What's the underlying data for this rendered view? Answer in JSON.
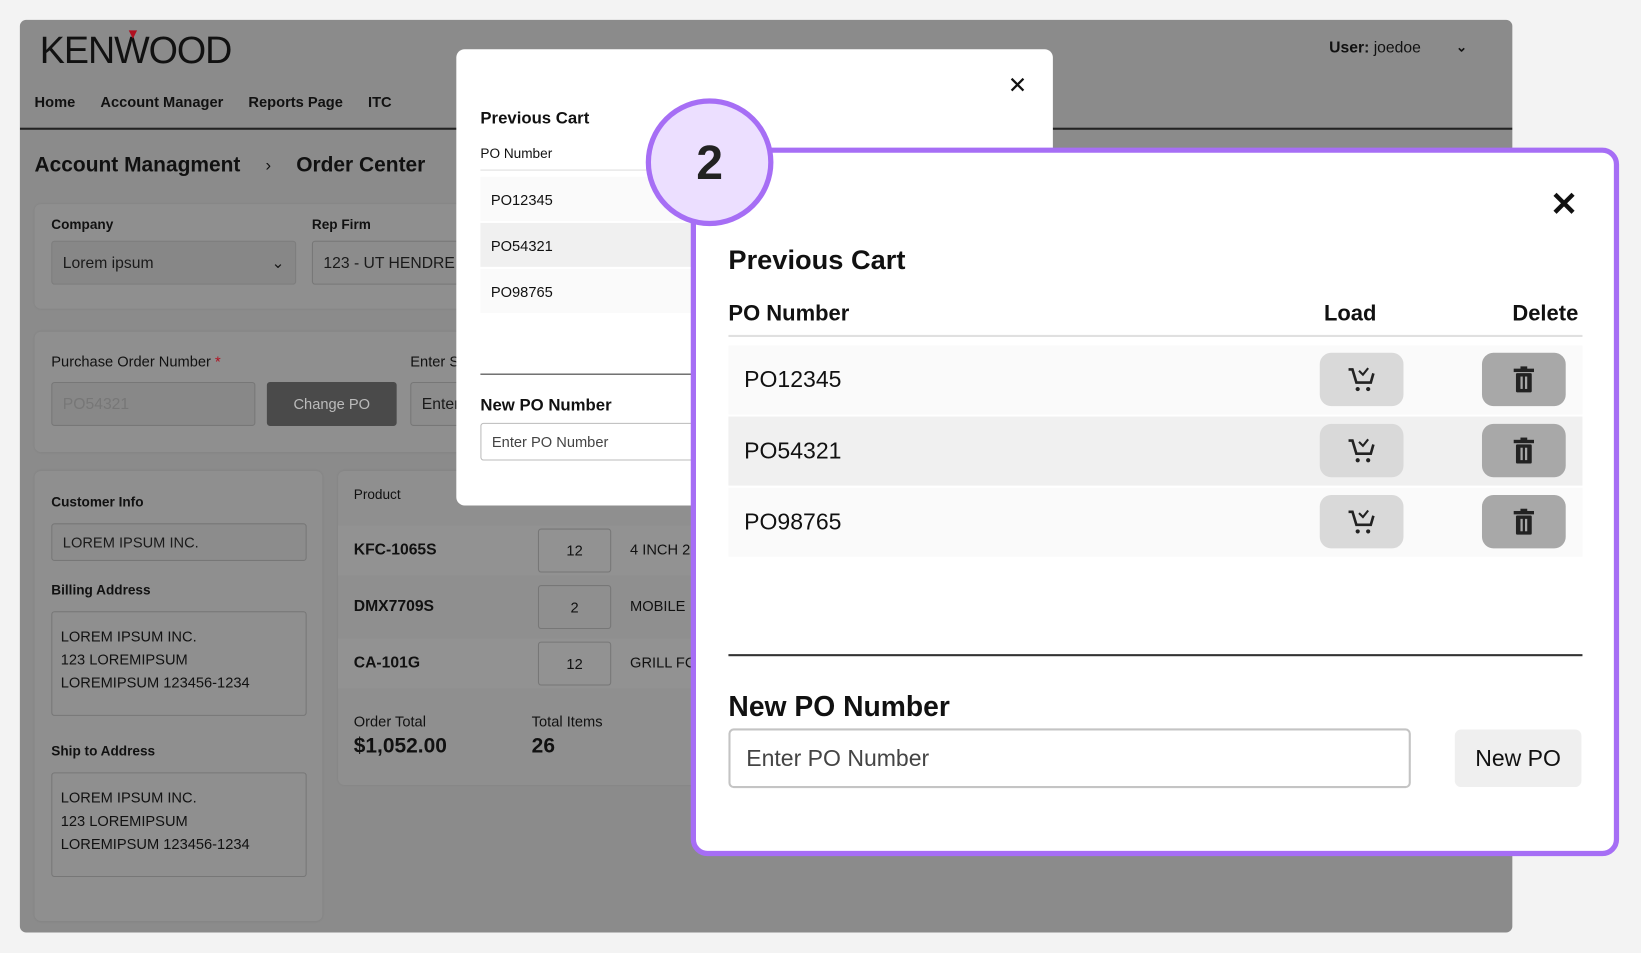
{
  "header": {
    "logo": "KENWOOD",
    "nav": [
      "Home",
      "Account Manager",
      "Reports Page",
      "ITC"
    ],
    "user_label": "User:",
    "user_name": "joedoe"
  },
  "breadcrumb": [
    "Account Managment",
    "Order Center"
  ],
  "company": {
    "label": "Company",
    "value": "Lorem ipsum"
  },
  "rep_firm": {
    "label": "Rep Firm",
    "value": "123 - UT HENDRE"
  },
  "po": {
    "label": "Purchase Order Number",
    "required": "*",
    "value": "PO54321",
    "change_button": "Change PO",
    "enter_label": "Enter S",
    "enter_placeholder": "Enter"
  },
  "customer": {
    "label": "Customer Info",
    "value": "LOREM IPSUM INC.",
    "billing_label": "Billing Address",
    "billing": [
      "LOREM IPSUM INC.",
      "123 LOREMIPSUM",
      "LOREMIPSUM 123456-1234"
    ],
    "ship_label": "Ship to Address",
    "ship": [
      "LOREM IPSUM INC.",
      "123 LOREMIPSUM",
      "LOREMIPSUM 123456-1234"
    ]
  },
  "products": {
    "header": "Product",
    "rows": [
      {
        "code": "KFC-1065S",
        "qty": "12",
        "desc": "4 INCH 2"
      },
      {
        "code": "DMX7709S",
        "qty": "2",
        "desc": "MOBILE"
      },
      {
        "code": "CA-101G",
        "qty": "12",
        "desc": "GRILL FC"
      }
    ],
    "order_total_label": "Order Total",
    "order_total": "$1,052.00",
    "total_items_label": "Total Items",
    "total_items": "26"
  },
  "modal": {
    "title": "Previous Cart",
    "col_po": "PO Number",
    "col_load": "Load",
    "col_delete": "Delete",
    "rows": [
      "PO12345",
      "PO54321",
      "PO98765"
    ],
    "new_label": "New PO Number",
    "new_placeholder": "Enter PO Number",
    "new_button": "New PO",
    "close": "✕"
  },
  "callout": {
    "step": "2",
    "accent": "#a66ef5"
  }
}
